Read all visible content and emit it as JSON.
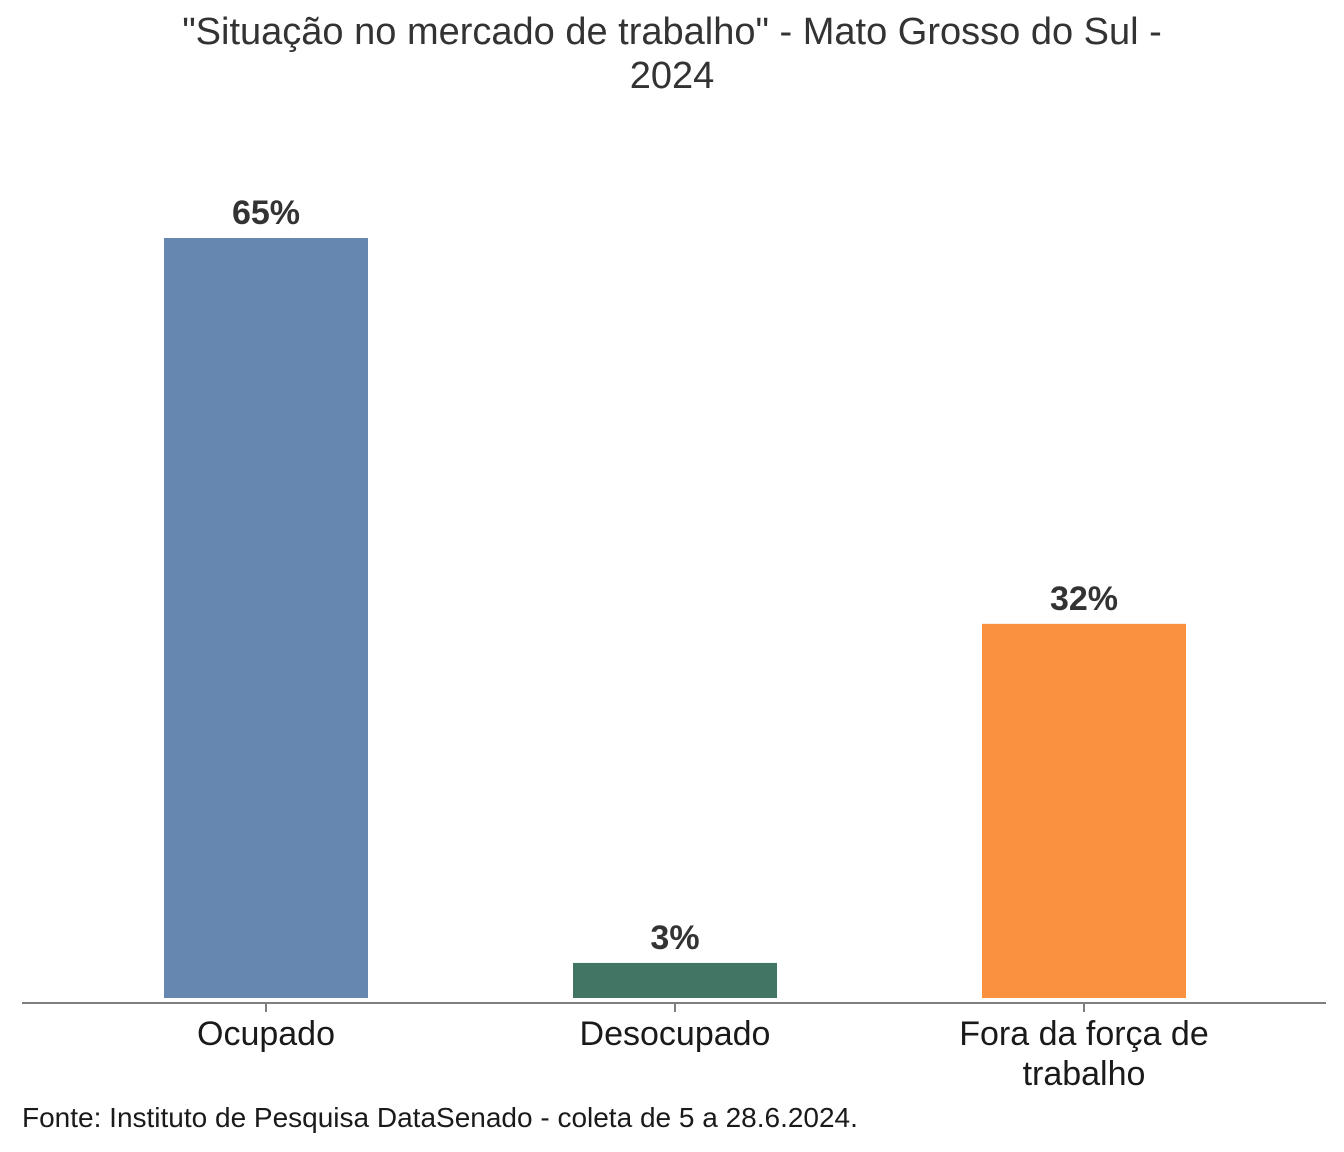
{
  "chart_data": {
    "type": "bar",
    "title_lines": [
      "\"Situação no mercado de trabalho\" - Mato Grosso do Sul -",
      "2024"
    ],
    "categories": [
      [
        "Ocupado"
      ],
      [
        "Desocupado"
      ],
      [
        "Fora da força de",
        "trabalho"
      ]
    ],
    "values": [
      65,
      3,
      32
    ],
    "data_labels": [
      "65%",
      "3%",
      "32%"
    ],
    "colors": [
      "#6688b0",
      "#427563",
      "#f9923f"
    ],
    "unit": "%",
    "ylim": [
      0,
      65
    ],
    "grid": false,
    "legend": "none",
    "source": "Fonte: Instituto de Pesquisa DataSenado - coleta de 5 a 28.6.2024."
  }
}
